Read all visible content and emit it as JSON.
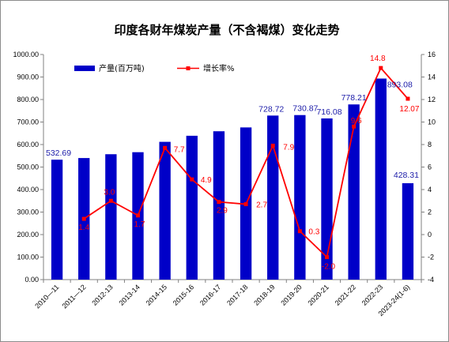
{
  "chart_data": {
    "type": "bar+line",
    "title": "印度各财年煤炭产量（不含褐煤）变化走势",
    "categories": [
      "2010—11",
      "2011—12",
      "2012-13",
      "2013-14",
      "2014-15",
      "2015-16",
      "2016-17",
      "2017-18",
      "2018-19",
      "2019-20",
      "2020-21",
      "2021-22",
      "2022-23",
      "2023-24(1-6)"
    ],
    "series": [
      {
        "name": "产量(百万吨)",
        "type": "bar",
        "axis": "left",
        "color": "#0000c8",
        "values": [
          532.69,
          540,
          557,
          566,
          612,
          639,
          659,
          676,
          728.72,
          730.87,
          716.08,
          778.21,
          893.08,
          428.31
        ],
        "labels": [
          "532.69",
          "",
          "",
          "",
          "",
          "",
          "",
          "",
          "728.72",
          "730.87",
          "716.08",
          "778.21",
          "893.08",
          "428.31"
        ]
      },
      {
        "name": "增长率%",
        "type": "line",
        "axis": "right",
        "color": "#ff0000",
        "values": [
          null,
          1.4,
          3.0,
          1.7,
          7.7,
          4.9,
          2.9,
          2.7,
          7.9,
          0.3,
          -2.0,
          9.6,
          14.8,
          12.07
        ],
        "labels": [
          "",
          "1.4",
          "3.0",
          "1.7",
          "7.7",
          "4.9",
          "2.9",
          "2.7",
          "7.9",
          "0.3",
          "-2.0",
          "9.6",
          "14.8",
          "12.07"
        ]
      }
    ],
    "ylim_left": [
      0,
      1000
    ],
    "yticks_left": [
      "0.00",
      "100.00",
      "200.00",
      "300.00",
      "400.00",
      "500.00",
      "600.00",
      "700.00",
      "800.00",
      "900.00",
      "1000.00"
    ],
    "ylim_right": [
      -4,
      16
    ],
    "yticks_right": [
      "-4",
      "-2",
      "0",
      "2",
      "4",
      "6",
      "8",
      "10",
      "12",
      "14",
      "16"
    ],
    "grid": false,
    "legend_position": "top-left"
  }
}
